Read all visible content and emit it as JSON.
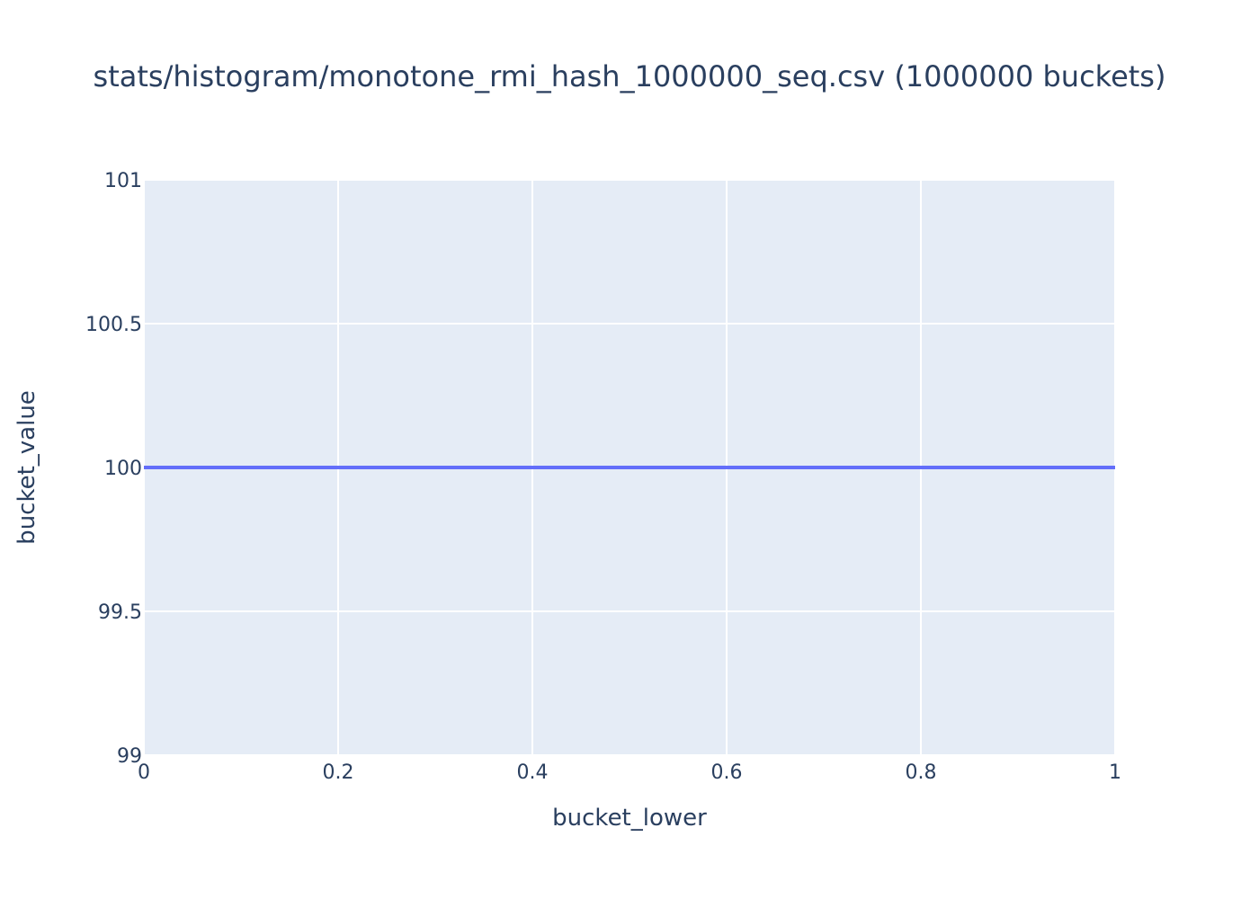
{
  "chart_data": {
    "type": "line",
    "title": "stats/histogram/monotone_rmi_hash_1000000_seq.csv (1000000 buckets)",
    "xlabel": "bucket_lower",
    "ylabel": "bucket_value",
    "xlim": [
      0,
      1
    ],
    "ylim": [
      99,
      101
    ],
    "x_ticks": [
      0,
      0.2,
      0.4,
      0.6,
      0.8,
      1
    ],
    "x_tick_labels": [
      "0",
      "0.2",
      "0.4",
      "0.6",
      "0.8",
      "1"
    ],
    "y_ticks": [
      99,
      99.5,
      100,
      100.5,
      101
    ],
    "y_tick_labels": [
      "99",
      "99.5",
      "100",
      "100.5",
      "101"
    ],
    "grid": true,
    "series": [
      {
        "color": "#636efa",
        "x": [
          0,
          1
        ],
        "y": [
          100,
          100
        ]
      }
    ],
    "colors": {
      "plot_background": "#e5ecf6",
      "grid": "#ffffff",
      "text": "#2a3f5f"
    }
  }
}
